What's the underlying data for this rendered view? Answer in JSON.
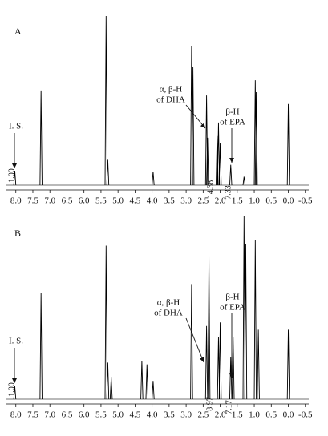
{
  "chart_data": [
    {
      "type": "spectrum",
      "title": "A",
      "color": "#000000",
      "x": [
        8.03,
        7.26,
        5.35,
        5.3,
        3.97,
        2.84,
        2.8,
        2.4,
        2.37,
        2.09,
        2.05,
        2.0,
        1.69,
        1.3,
        0.97,
        0.94,
        0.0
      ],
      "values": [
        8.5,
        56,
        100,
        15,
        8,
        82,
        70,
        53,
        28,
        29,
        37,
        25,
        12,
        5,
        62,
        55,
        48
      ],
      "xlim": [
        8.3,
        -0.6
      ],
      "ylim": [
        0,
        100
      ],
      "xticks": [
        {
          "value": 8,
          "label": "8.0"
        },
        7.5,
        {
          "value": 7,
          "label": "7.0"
        },
        6.5,
        {
          "value": 6,
          "label": "6.0"
        },
        5.5,
        {
          "value": 5,
          "label": "5.0"
        },
        4.5,
        {
          "value": 4,
          "label": "4.0"
        },
        3.5,
        {
          "value": 3,
          "label": "3.0"
        },
        2.5,
        {
          "value": 2,
          "label": "2.0"
        },
        1.5,
        {
          "value": 1,
          "label": "1.0"
        },
        0.5,
        {
          "value": 0,
          "label": "0.0"
        },
        -0.5
      ],
      "annotations": [
        [
          "I. S."
        ],
        [
          "α, β-H",
          "of DHA"
        ],
        [
          "β-H",
          "of EPA"
        ]
      ],
      "integrals": [
        {
          "value": 1,
          "label": "1.00"
        },
        14.38,
        7.33
      ]
    },
    {
      "type": "spectrum",
      "title": "B",
      "color": "#000000",
      "x": [
        8.03,
        7.26,
        5.35,
        5.3,
        5.2,
        4.3,
        4.15,
        3.97,
        2.84,
        2.4,
        2.33,
        2.05,
        2.0,
        1.69,
        1.62,
        1.3,
        1.25,
        0.97,
        0.88,
        0.0
      ],
      "values": [
        7,
        58,
        84,
        20,
        12,
        21,
        19,
        10,
        63,
        40,
        78,
        34,
        42,
        23,
        34,
        100,
        85,
        87,
        38,
        38
      ],
      "xlim": [
        8.3,
        -0.6
      ],
      "ylim": [
        0,
        100
      ],
      "xticks": [
        {
          "value": 8,
          "label": "8.0"
        },
        7.5,
        {
          "value": 7,
          "label": "7.0"
        },
        6.5,
        {
          "value": 6,
          "label": "6.0"
        },
        5.5,
        {
          "value": 5,
          "label": "5.0"
        },
        4.5,
        {
          "value": 4,
          "label": "4.0"
        },
        3.5,
        {
          "value": 3,
          "label": "3.0"
        },
        2.5,
        {
          "value": 2,
          "label": "2.0"
        },
        1.5,
        {
          "value": 1,
          "label": "1.0"
        },
        0.5,
        {
          "value": 0,
          "label": "0.0"
        },
        -0.5
      ],
      "annotations": [
        [
          "I. S."
        ],
        [
          "α, β-H",
          "of DHA"
        ],
        [
          "β-H",
          "of EPA"
        ]
      ],
      "integrals": [
        {
          "value": 1,
          "label": "1.00"
        },
        8.97,
        7.17
      ]
    }
  ]
}
